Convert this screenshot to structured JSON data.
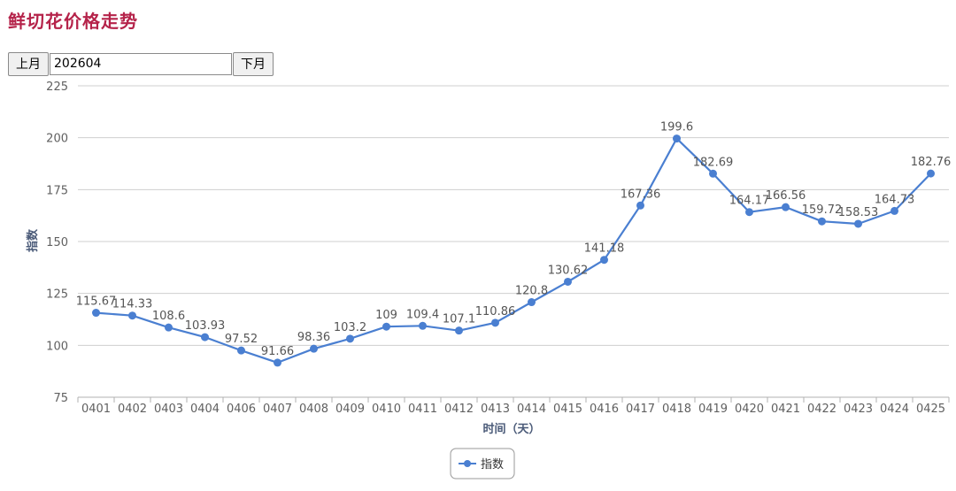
{
  "header": {
    "title": "鲜切花价格走势"
  },
  "controls": {
    "prev_label": "上月",
    "month_value": "202604",
    "next_label": "下月"
  },
  "colors": {
    "line": "#4a7fd1",
    "title": "#b5234a",
    "axis_title": "#4a5a78",
    "grid": "#cfcfcf",
    "tick_label": "#606060"
  },
  "chart_data": {
    "type": "line",
    "title": "",
    "xlabel": "时间（天）",
    "ylabel": "指数",
    "ylim": [
      75,
      225
    ],
    "yticks": [
      75,
      100,
      125,
      150,
      175,
      200,
      225
    ],
    "grid": true,
    "legend": "bottom-center",
    "categories": [
      "0401",
      "0402",
      "0403",
      "0404",
      "0406",
      "0407",
      "0408",
      "0409",
      "0410",
      "0411",
      "0412",
      "0413",
      "0414",
      "0415",
      "0416",
      "0417",
      "0418",
      "0419",
      "0420",
      "0421",
      "0422",
      "0423",
      "0424",
      "0425"
    ],
    "series": [
      {
        "name": "指数",
        "values": [
          115.67,
          114.33,
          108.6,
          103.93,
          97.52,
          91.66,
          98.36,
          103.2,
          109,
          109.4,
          107.1,
          110.86,
          120.8,
          130.62,
          141.18,
          167.36,
          199.6,
          182.69,
          164.17,
          166.56,
          159.72,
          158.53,
          164.73,
          182.76
        ]
      }
    ]
  }
}
